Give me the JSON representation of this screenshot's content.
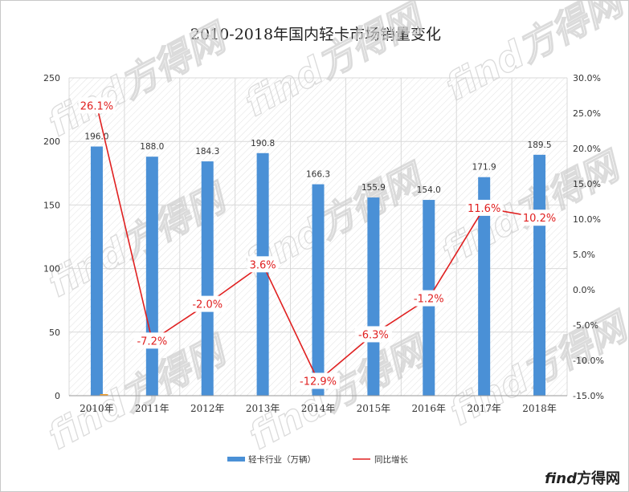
{
  "chart_data": {
    "type": "bar+line",
    "title": "2010-2018年国内轻卡市场销量变化",
    "categories": [
      "2010年",
      "2011年",
      "2012年",
      "2013年",
      "2014年",
      "2015年",
      "2016年",
      "2017年",
      "2018年"
    ],
    "series": [
      {
        "name": "轻卡行业（万辆）",
        "type": "bar",
        "axis": "left",
        "values": [
          196.0,
          188.0,
          184.3,
          190.8,
          166.3,
          155.9,
          154.0,
          171.9,
          189.5
        ],
        "labels": [
          "196.0",
          "188.0",
          "184.3",
          "190.8",
          "166.3",
          "155.9",
          "154.0",
          "171.9",
          "189.5"
        ]
      },
      {
        "name": "同比增长",
        "type": "line",
        "axis": "right",
        "values": [
          26.1,
          -7.2,
          -2.0,
          3.6,
          -12.9,
          -6.3,
          -1.2,
          11.6,
          10.2
        ],
        "labels": [
          "26.1%",
          "-7.2%",
          "-2.0%",
          "3.6%",
          "-12.9%",
          "-6.3%",
          "-1.2%",
          "11.6%",
          "10.2%"
        ]
      }
    ],
    "left_axis": {
      "min": 0,
      "max": 250,
      "ticks": [
        "0",
        "50",
        "100",
        "150",
        "200",
        "250"
      ]
    },
    "right_axis": {
      "min": -15,
      "max": 30,
      "ticks": [
        "-15.0%",
        "-10.0%",
        "-5.0%",
        "0.0%",
        "5.0%",
        "10.0%",
        "15.0%",
        "20.0%",
        "25.0%",
        "30.0%"
      ]
    },
    "grid": true,
    "legend_position": "bottom",
    "colors": {
      "bar": "#4a90d6",
      "line": "#e02020",
      "grid": "#d9d9d9",
      "label_red": "#e02020"
    }
  },
  "watermark": {
    "text": "find方得网"
  },
  "brand": {
    "prefix": "find",
    "suffix": "方得网"
  }
}
